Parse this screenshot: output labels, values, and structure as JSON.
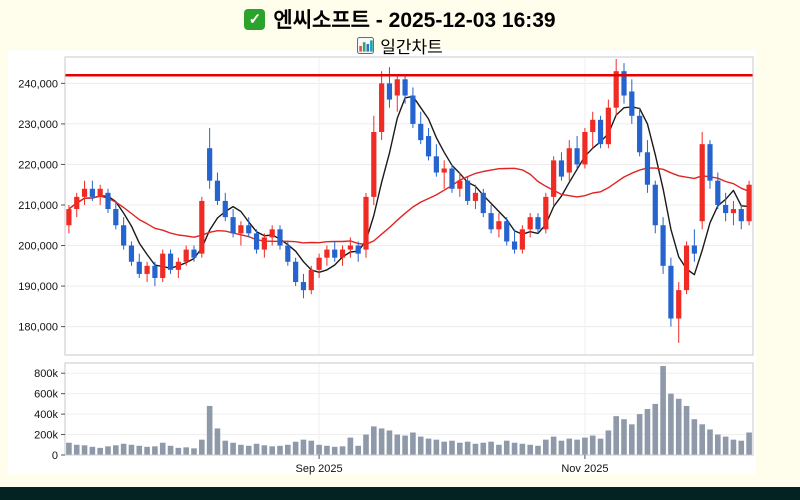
{
  "header": {
    "title": "엔씨소프트 - 2025-12-03 16:39",
    "subtitle": "일간차트",
    "check_icon": "✓"
  },
  "colors": {
    "background": "#fffdec",
    "figure_background": "#ffffff",
    "up": "#ef2b24",
    "down": "#2563cf",
    "ma_fast": "#1a1a1a",
    "ma_slow": "#e02424",
    "resistance": "#e60000",
    "volume_bar": "#8e99a9",
    "axis_text": "#111111",
    "footer": "#032222"
  },
  "chart_data": {
    "type": "candlestick",
    "title": "엔씨소프트 일간차트",
    "legend_position": "none",
    "grid": true,
    "price_range": [
      173000,
      246500
    ],
    "volume_range": [
      0,
      900000
    ],
    "resistance_line": 242000,
    "price_ticks": [
      {
        "v": 180000,
        "label": "180,000"
      },
      {
        "v": 190000,
        "label": "190,000"
      },
      {
        "v": 200000,
        "label": "200,000"
      },
      {
        "v": 210000,
        "label": "210,000"
      },
      {
        "v": 220000,
        "label": "220,000"
      },
      {
        "v": 230000,
        "label": "230,000"
      },
      {
        "v": 240000,
        "label": "240,000"
      }
    ],
    "volume_ticks": [
      {
        "v": 0,
        "label": "0"
      },
      {
        "v": 200000,
        "label": "200k"
      },
      {
        "v": 400000,
        "label": "400k"
      },
      {
        "v": 600000,
        "label": "600k"
      },
      {
        "v": 800000,
        "label": "800k"
      }
    ],
    "x_ticks": [
      {
        "index": 32,
        "label": "Sep 2025"
      },
      {
        "index": 66,
        "label": "Nov 2025"
      }
    ],
    "overlays": [
      {
        "name": "ma-fast",
        "window": 5,
        "color_key": "ma_fast"
      },
      {
        "name": "ma-slow",
        "window": 20,
        "color_key": "ma_slow"
      }
    ],
    "candles": [
      [
        205000,
        210000,
        203000,
        209000,
        120000
      ],
      [
        209000,
        213000,
        207000,
        212000,
        100000
      ],
      [
        212000,
        216000,
        210000,
        214000,
        95000
      ],
      [
        214000,
        216000,
        211000,
        212000,
        80000
      ],
      [
        212000,
        215000,
        210000,
        214000,
        70000
      ],
      [
        213000,
        214000,
        208000,
        209000,
        85000
      ],
      [
        209000,
        211000,
        204000,
        205000,
        95000
      ],
      [
        205000,
        207000,
        199000,
        200000,
        110000
      ],
      [
        200000,
        201000,
        195000,
        196000,
        100000
      ],
      [
        196000,
        198000,
        192000,
        193000,
        90000
      ],
      [
        193000,
        196000,
        191000,
        195000,
        80000
      ],
      [
        195000,
        196000,
        190000,
        192000,
        85000
      ],
      [
        192000,
        199000,
        191000,
        198000,
        120000
      ],
      [
        198000,
        199000,
        193000,
        194000,
        90000
      ],
      [
        194000,
        197000,
        192000,
        196000,
        70000
      ],
      [
        196000,
        200000,
        195000,
        199000,
        75000
      ],
      [
        199000,
        200000,
        196000,
        197000,
        65000
      ],
      [
        198000,
        212000,
        197000,
        211000,
        150000
      ],
      [
        224000,
        229000,
        214000,
        216000,
        480000
      ],
      [
        216000,
        218000,
        210000,
        211000,
        260000
      ],
      [
        211000,
        213000,
        206000,
        207000,
        140000
      ],
      [
        207000,
        209000,
        202000,
        203000,
        120000
      ],
      [
        203000,
        206000,
        200000,
        205000,
        100000
      ],
      [
        205000,
        207000,
        202000,
        203000,
        90000
      ],
      [
        203000,
        204000,
        198000,
        199000,
        110000
      ],
      [
        199000,
        203000,
        197000,
        202000,
        95000
      ],
      [
        202000,
        205000,
        200000,
        204000,
        85000
      ],
      [
        204000,
        205000,
        199000,
        200000,
        90000
      ],
      [
        200000,
        201000,
        195000,
        196000,
        100000
      ],
      [
        196000,
        197000,
        190000,
        191000,
        130000
      ],
      [
        191000,
        193000,
        187000,
        189000,
        150000
      ],
      [
        189000,
        195000,
        188000,
        194000,
        140000
      ],
      [
        194000,
        198000,
        192000,
        197000,
        100000
      ],
      [
        197000,
        200000,
        195000,
        199000,
        90000
      ],
      [
        199000,
        201000,
        196000,
        197000,
        80000
      ],
      [
        197000,
        200000,
        195000,
        199000,
        85000
      ],
      [
        199000,
        202000,
        197000,
        200000,
        170000
      ],
      [
        200000,
        201000,
        196000,
        198000,
        90000
      ],
      [
        199000,
        213000,
        197000,
        212000,
        200000
      ],
      [
        212000,
        232000,
        210000,
        228000,
        280000
      ],
      [
        228000,
        243000,
        226000,
        240000,
        260000
      ],
      [
        240000,
        244000,
        234000,
        236000,
        240000
      ],
      [
        237000,
        242000,
        233000,
        241000,
        200000
      ],
      [
        241000,
        242000,
        235000,
        237000,
        190000
      ],
      [
        237000,
        239000,
        229000,
        230000,
        220000
      ],
      [
        230000,
        233000,
        225000,
        226000,
        180000
      ],
      [
        227000,
        229000,
        221000,
        222000,
        160000
      ],
      [
        222000,
        225000,
        217000,
        218000,
        150000
      ],
      [
        218000,
        221000,
        214000,
        219000,
        130000
      ],
      [
        219000,
        220000,
        213000,
        214000,
        140000
      ],
      [
        214000,
        218000,
        212000,
        216000,
        120000
      ],
      [
        216000,
        217000,
        210000,
        211000,
        130000
      ],
      [
        211000,
        215000,
        209000,
        213000,
        110000
      ],
      [
        213000,
        214000,
        207000,
        208000,
        120000
      ],
      [
        208000,
        210000,
        203000,
        204000,
        130000
      ],
      [
        204000,
        208000,
        202000,
        206000,
        100000
      ],
      [
        206000,
        207000,
        200000,
        201000,
        140000
      ],
      [
        201000,
        204000,
        198000,
        199000,
        120000
      ],
      [
        199000,
        205000,
        198000,
        204000,
        110000
      ],
      [
        204000,
        208000,
        202000,
        207000,
        100000
      ],
      [
        207000,
        208000,
        203000,
        204000,
        90000
      ],
      [
        204000,
        213000,
        203000,
        212000,
        150000
      ],
      [
        212000,
        222000,
        210000,
        221000,
        180000
      ],
      [
        221000,
        223000,
        216000,
        217000,
        140000
      ],
      [
        218000,
        226000,
        216000,
        224000,
        160000
      ],
      [
        224000,
        227000,
        219000,
        220000,
        150000
      ],
      [
        220000,
        229000,
        219000,
        228000,
        170000
      ],
      [
        228000,
        233000,
        224000,
        231000,
        190000
      ],
      [
        231000,
        232000,
        224000,
        225000,
        160000
      ],
      [
        225000,
        236000,
        224000,
        234000,
        240000
      ],
      [
        234000,
        246000,
        232000,
        243000,
        380000
      ],
      [
        243000,
        245000,
        235000,
        237000,
        350000
      ],
      [
        238000,
        241000,
        230000,
        232000,
        300000
      ],
      [
        232000,
        234000,
        222000,
        223000,
        400000
      ],
      [
        223000,
        226000,
        213000,
        215000,
        450000
      ],
      [
        215000,
        216000,
        203000,
        205000,
        500000
      ],
      [
        205000,
        207000,
        193000,
        195000,
        870000
      ],
      [
        195000,
        197000,
        180000,
        182000,
        600000
      ],
      [
        182000,
        191000,
        176000,
        189000,
        550000
      ],
      [
        189000,
        201000,
        188000,
        200000,
        480000
      ],
      [
        200000,
        204000,
        196000,
        198000,
        350000
      ],
      [
        206000,
        228000,
        204000,
        225000,
        300000
      ],
      [
        225000,
        226000,
        214000,
        216000,
        250000
      ],
      [
        216000,
        218000,
        209000,
        210000,
        200000
      ],
      [
        210000,
        213000,
        206000,
        208000,
        180000
      ],
      [
        208000,
        211000,
        205000,
        209000,
        150000
      ],
      [
        209000,
        210000,
        204000,
        206000,
        140000
      ],
      [
        206000,
        216000,
        205000,
        215000,
        220000
      ]
    ]
  }
}
